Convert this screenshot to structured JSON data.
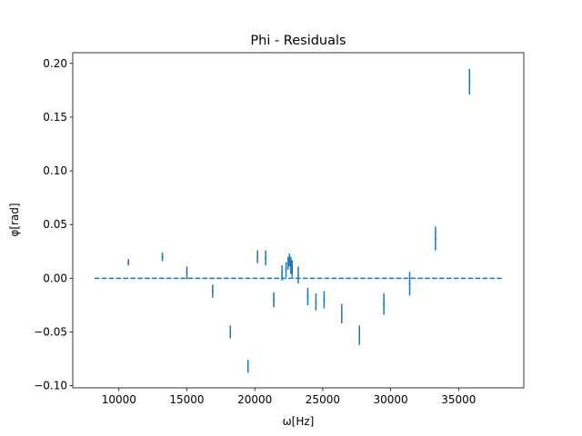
{
  "chart_data": {
    "type": "scatter",
    "title": "Phi - Residuals",
    "xlabel": "ω[Hz]",
    "ylabel": "φ[rad]",
    "xlim": [
      6600,
      39800
    ],
    "ylim": [
      -0.102,
      0.21
    ],
    "xticks": [
      10000,
      15000,
      20000,
      25000,
      30000,
      35000
    ],
    "xtick_labels": [
      "10000",
      "15000",
      "20000",
      "25000",
      "30000",
      "35000"
    ],
    "yticks": [
      -0.1,
      -0.05,
      0.0,
      0.05,
      0.1,
      0.15,
      0.2
    ],
    "ytick_labels": [
      "−0.10",
      "−0.05",
      "0.00",
      "0.05",
      "0.10",
      "0.15",
      "0.20"
    ],
    "grid": false,
    "color": "#1f77b4",
    "series": [
      {
        "style": "errorbar",
        "points": [
          {
            "x": 10700,
            "y": 0.015,
            "err": 0.003
          },
          {
            "x": 13200,
            "y": 0.02,
            "err": 0.004
          },
          {
            "x": 15000,
            "y": 0.005,
            "err": 0.006
          },
          {
            "x": 16900,
            "y": -0.012,
            "err": 0.006
          },
          {
            "x": 18200,
            "y": -0.05,
            "err": 0.006
          },
          {
            "x": 19500,
            "y": -0.082,
            "err": 0.006
          },
          {
            "x": 20200,
            "y": 0.02,
            "err": 0.006
          },
          {
            "x": 20800,
            "y": 0.019,
            "err": 0.007
          },
          {
            "x": 21400,
            "y": -0.02,
            "err": 0.007
          },
          {
            "x": 22000,
            "y": 0.005,
            "err": 0.007
          },
          {
            "x": 22300,
            "y": 0.008,
            "err": 0.007
          },
          {
            "x": 22450,
            "y": 0.014,
            "err": 0.006
          },
          {
            "x": 22550,
            "y": 0.017,
            "err": 0.006
          },
          {
            "x": 22650,
            "y": 0.012,
            "err": 0.008
          },
          {
            "x": 22750,
            "y": 0.009,
            "err": 0.008
          },
          {
            "x": 23200,
            "y": 0.003,
            "err": 0.008
          },
          {
            "x": 23900,
            "y": -0.017,
            "err": 0.008
          },
          {
            "x": 24500,
            "y": -0.022,
            "err": 0.008
          },
          {
            "x": 25100,
            "y": -0.02,
            "err": 0.008
          },
          {
            "x": 26400,
            "y": -0.033,
            "err": 0.009
          },
          {
            "x": 27700,
            "y": -0.053,
            "err": 0.009
          },
          {
            "x": 29500,
            "y": -0.024,
            "err": 0.01
          },
          {
            "x": 31400,
            "y": -0.005,
            "err": 0.011
          },
          {
            "x": 33300,
            "y": 0.037,
            "err": 0.011
          },
          {
            "x": 35800,
            "y": 0.183,
            "err": 0.012
          }
        ]
      },
      {
        "style": "dashed-line",
        "x": [
          8200,
          38200
        ],
        "y": [
          0,
          0
        ]
      }
    ]
  }
}
